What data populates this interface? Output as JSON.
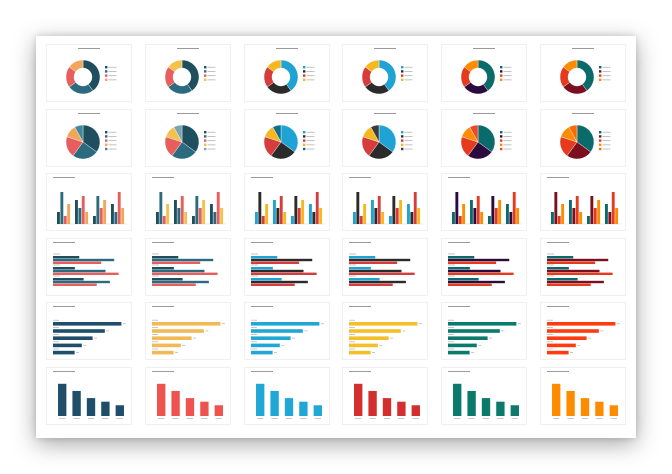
{
  "sheet": {
    "rows": 6,
    "cols": 6
  },
  "palettes": [
    [
      "#1f4e5f",
      "#2c6b7f",
      "#e85d5d",
      "#f2a65a",
      "#3e8a9a"
    ],
    [
      "#1f4e5f",
      "#2c6b7f",
      "#e85d5d",
      "#f2c14e",
      "#7aa5b0"
    ],
    [
      "#1fa3d4",
      "#2b2b2b",
      "#d63c3c",
      "#f5b81f",
      "#0f6e8c"
    ],
    [
      "#1fa3d4",
      "#2b2b2b",
      "#d63c3c",
      "#f5b81f",
      "#3b3b3b"
    ],
    [
      "#0b6b6b",
      "#2b0a3d",
      "#e63a1f",
      "#ff8c00",
      "#e54b2c"
    ],
    [
      "#0b6b6b",
      "#7a0f1f",
      "#e63a1f",
      "#ff8c00",
      "#ff6a00"
    ]
  ],
  "single_colors": [
    "#1f4e6b",
    "#f2b957",
    "#21a7d6",
    "#f5bf2a",
    "#0b7a6b",
    "#ff3b10"
  ],
  "column_colors": [
    "#1f4e6b",
    "#ef5350",
    "#21a7d6",
    "#d32f2f",
    "#0b7a6b",
    "#ff8c00"
  ],
  "chart_data": [
    {
      "type": "pie",
      "variant": "donut",
      "values": [
        40,
        25,
        20,
        15
      ]
    },
    {
      "type": "pie",
      "variant": "full",
      "values": [
        35,
        25,
        20,
        12,
        8
      ]
    },
    {
      "type": "bar",
      "variant": "grouped-columns",
      "categories": [
        "A",
        "B",
        "C",
        "D"
      ],
      "series": [
        {
          "values": [
            3,
            6,
            2,
            5
          ]
        },
        {
          "values": [
            8,
            4,
            7,
            3
          ]
        },
        {
          "values": [
            2,
            7,
            4,
            8
          ]
        },
        {
          "values": [
            5,
            3,
            6,
            4
          ]
        }
      ]
    },
    {
      "type": "bar",
      "variant": "horizontal-grouped",
      "series": [
        {
          "values": [
            30,
            25,
            35
          ]
        },
        {
          "values": [
            70,
            60,
            65
          ]
        },
        {
          "values": [
            55,
            75,
            50
          ]
        }
      ]
    },
    {
      "type": "bar",
      "variant": "horizontal",
      "values": [
        95,
        72,
        55,
        40,
        30
      ]
    },
    {
      "type": "bar",
      "variant": "columns",
      "values": [
        9,
        7,
        5,
        4,
        3
      ]
    }
  ]
}
